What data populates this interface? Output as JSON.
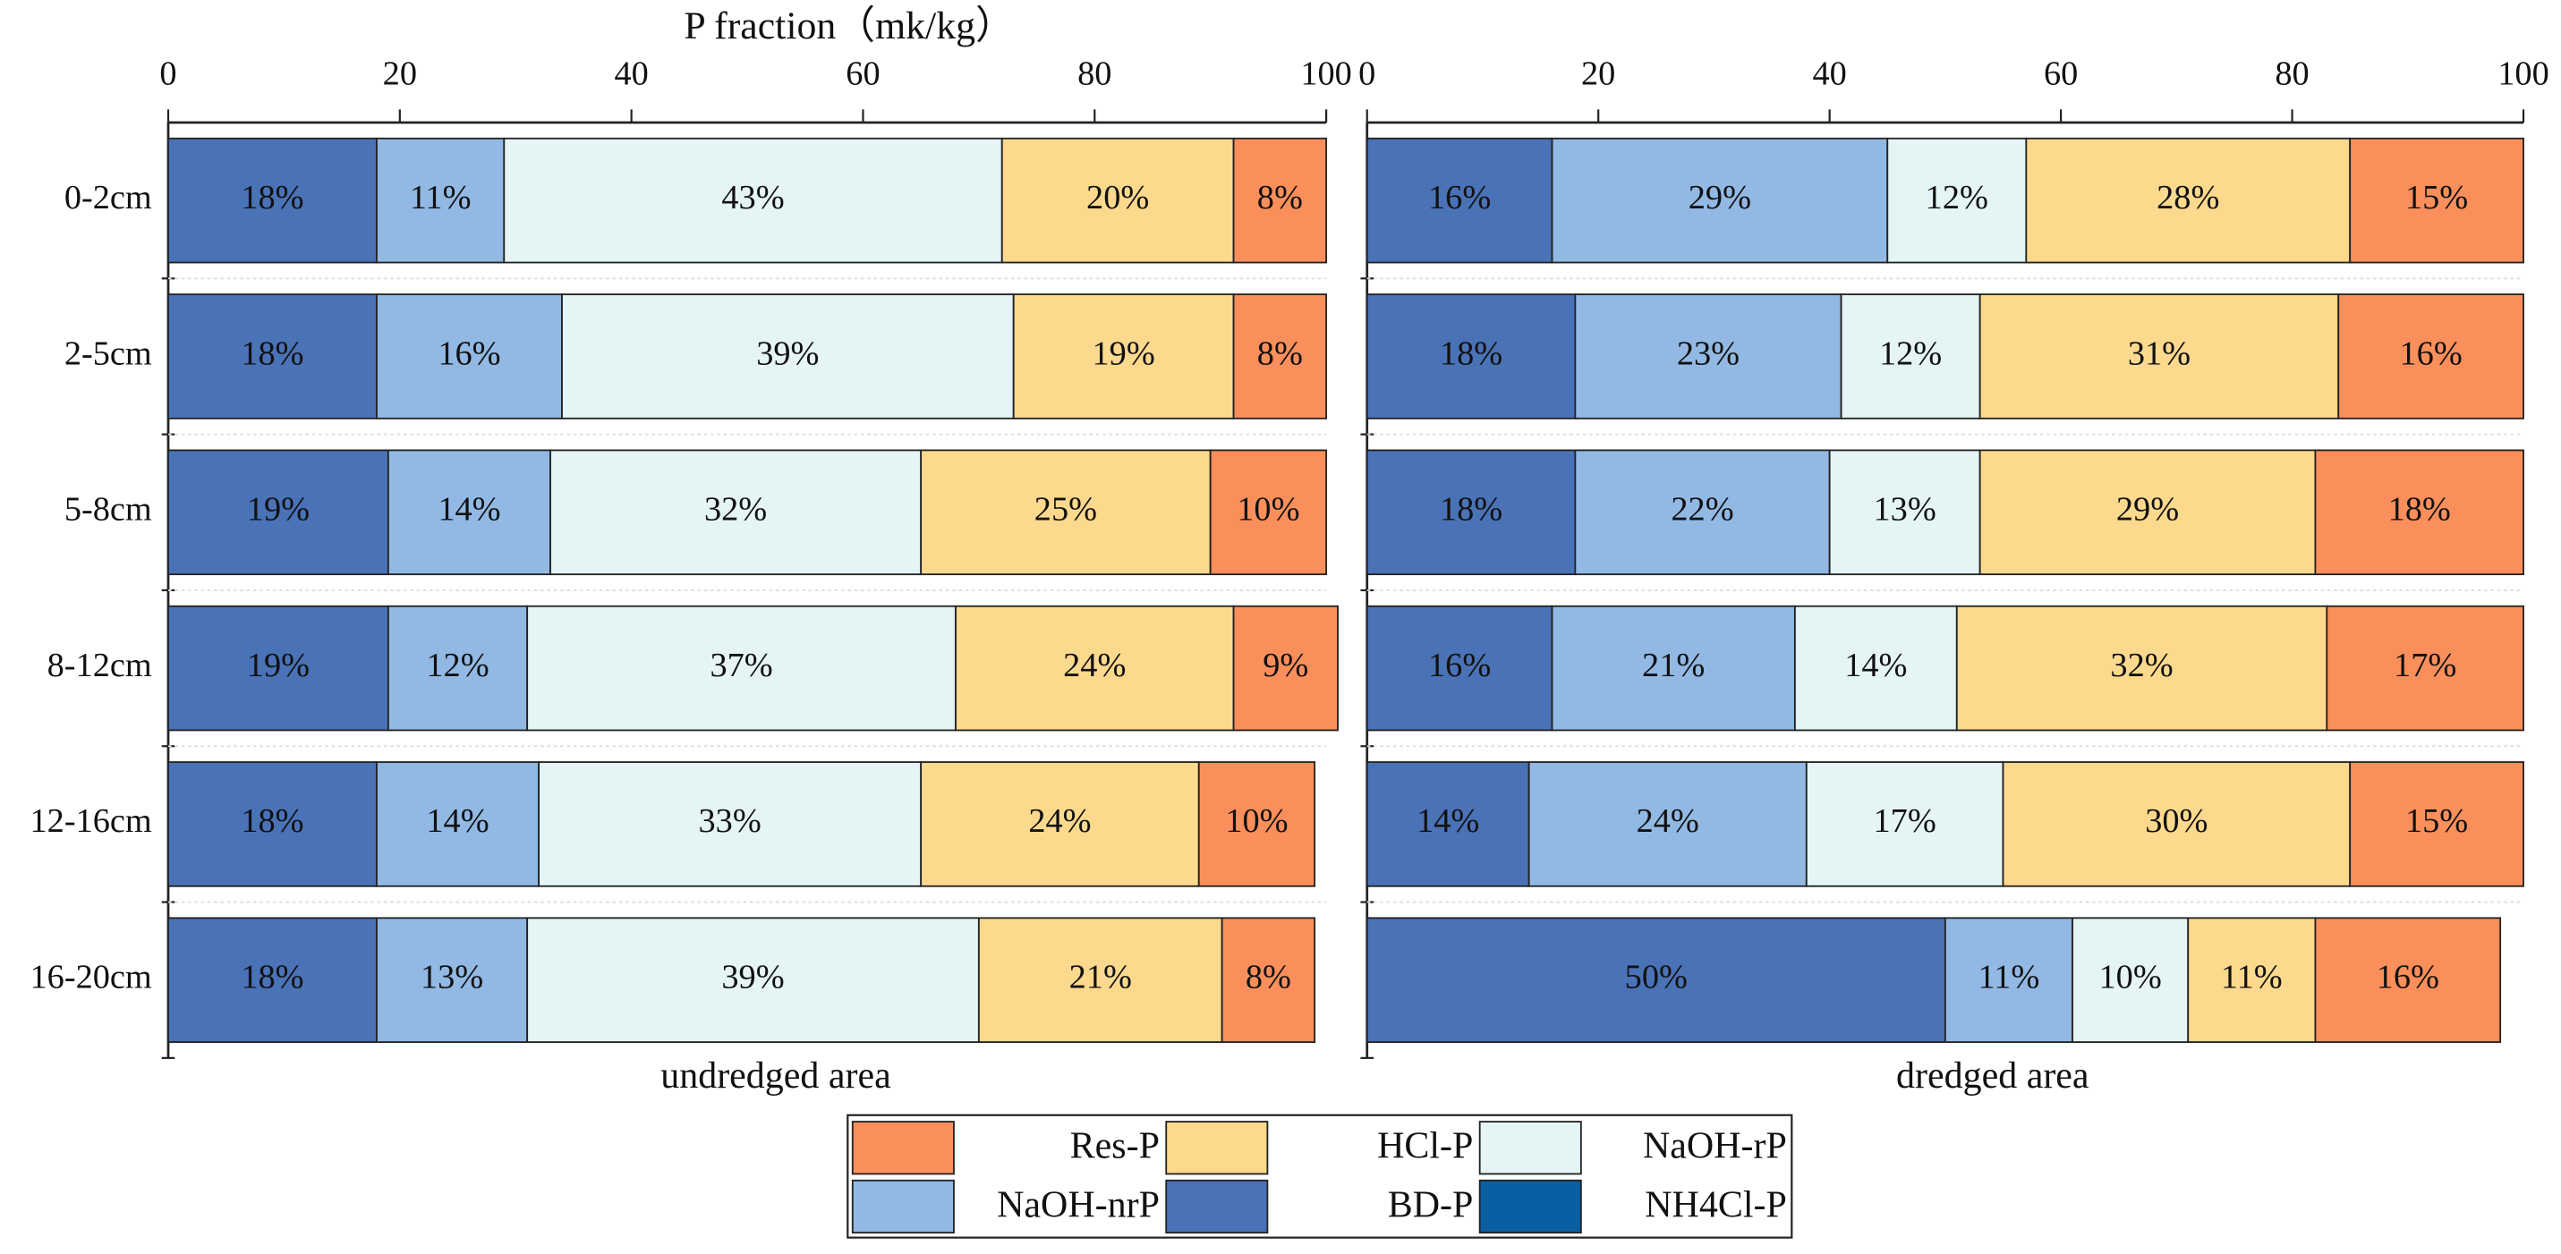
{
  "chart_data": [
    {
      "type": "stacked-barh",
      "title": "undredged area",
      "xlabel": "P fraction（mk/kg）",
      "categories": [
        "0-2cm",
        "2-5cm",
        "5-8cm",
        "8-12cm",
        "12-16cm",
        "16-20cm"
      ],
      "xlim": [
        0,
        100
      ],
      "xticks": [
        0,
        20,
        40,
        60,
        80,
        100
      ],
      "series": [
        {
          "name": "Res-P",
          "color": "#fb8f5b",
          "values": [
            8,
            8,
            10,
            9,
            10,
            8
          ],
          "value_labels": [
            "8%",
            "8%",
            "10%",
            "9%",
            "10%",
            "8%"
          ]
        },
        {
          "name": "HCl-P",
          "color": "#fdd98e",
          "values": [
            20,
            19,
            25,
            24,
            24,
            21
          ],
          "value_labels": [
            "20%",
            "19%",
            "25%",
            "24%",
            "24%",
            "21%"
          ]
        },
        {
          "name": "NaOH-rP",
          "color": "#e5f4f4",
          "values": [
            43,
            39,
            32,
            37,
            33,
            39
          ],
          "value_labels": [
            "43%",
            "39%",
            "32%",
            "37%",
            "33%",
            "39%"
          ]
        },
        {
          "name": "NaOH-nrP",
          "color": "#92b9e4",
          "values": [
            11,
            16,
            14,
            12,
            14,
            13
          ],
          "value_labels": [
            "11%",
            "16%",
            "14%",
            "12%",
            "14%",
            "13%"
          ]
        },
        {
          "name": "BD-P",
          "color": "#4a72b6",
          "values": [
            18,
            18,
            19,
            19,
            18,
            18
          ],
          "value_labels": [
            "18%",
            "18%",
            "19%",
            "19%",
            "18%",
            "18%"
          ]
        },
        {
          "name": "NH4Cl-P",
          "color": "#0a5fa3",
          "values": [
            0,
            0,
            0,
            0,
            0,
            0
          ]
        }
      ]
    },
    {
      "type": "stacked-barh",
      "title": "dredged area",
      "xlim": [
        0,
        100
      ],
      "xticks": [
        0,
        20,
        40,
        60,
        80,
        100
      ],
      "series": [
        {
          "name": "Res-P",
          "color": "#fb8f5b",
          "values": [
            15,
            16,
            18,
            17,
            15,
            16
          ],
          "value_labels": [
            "15%",
            "16%",
            "18%",
            "17%",
            "15%",
            "16%"
          ]
        },
        {
          "name": "HCl-P",
          "color": "#fdd98e",
          "values": [
            28,
            31,
            29,
            32,
            30,
            11
          ],
          "value_labels": [
            "28%",
            "31%",
            "29%",
            "32%",
            "30%",
            "11%"
          ]
        },
        {
          "name": "NaOH-rP",
          "color": "#e5f4f4",
          "values": [
            12,
            12,
            13,
            14,
            17,
            10
          ],
          "value_labels": [
            "12%",
            "12%",
            "13%",
            "14%",
            "17%",
            "10%"
          ]
        },
        {
          "name": "NaOH-nrP",
          "color": "#92b9e4",
          "values": [
            29,
            23,
            22,
            21,
            24,
            11
          ],
          "value_labels": [
            "29%",
            "23%",
            "22%",
            "21%",
            "24%",
            "11%"
          ]
        },
        {
          "name": "BD-P",
          "color": "#4a72b6",
          "values": [
            16,
            18,
            18,
            16,
            14,
            50
          ],
          "value_labels": [
            "16%",
            "18%",
            "18%",
            "16%",
            "14%",
            "50%"
          ]
        },
        {
          "name": "NH4Cl-P",
          "color": "#0a5fa3",
          "values": [
            0,
            0,
            0,
            0,
            0,
            0
          ]
        }
      ]
    }
  ]
}
